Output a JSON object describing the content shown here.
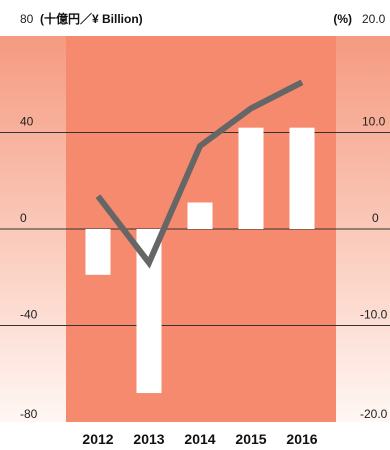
{
  "chart_data": {
    "type": "bar",
    "categories": [
      "2012",
      "2013",
      "2014",
      "2015",
      "2016"
    ],
    "series": [
      {
        "type": "bar",
        "axis": "left",
        "values": [
          -19,
          -68,
          11,
          42,
          42
        ]
      },
      {
        "type": "line",
        "axis": "right",
        "values": [
          3.4,
          -3.5,
          8.6,
          12.5,
          15.2
        ]
      }
    ],
    "y_left": {
      "label": "(十億円／¥ Billion)",
      "ticks": [
        "80",
        "40",
        "0",
        "-40",
        "-80"
      ],
      "range": [
        -80,
        80
      ]
    },
    "y_right": {
      "label": "(%)",
      "ticks": [
        "20.0",
        "10.0",
        "0",
        "-10.0",
        "-20.0"
      ],
      "range": [
        -20,
        20
      ]
    },
    "grid": true,
    "colors": {
      "panel": "#f58a6e",
      "side_top": "#f59a80",
      "side_bottom": "#fff7f3",
      "bar": "#ffffff",
      "line": "#666666",
      "gridline": "#333333"
    }
  }
}
